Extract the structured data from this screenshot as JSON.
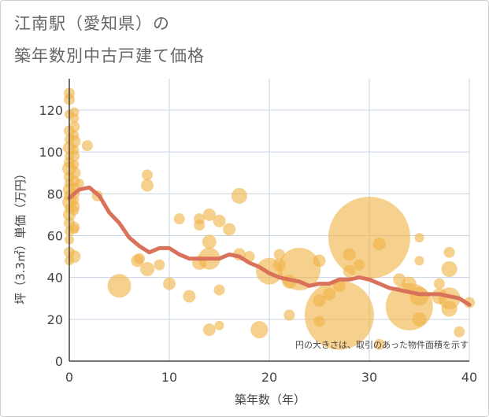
{
  "title_line1": "江南駅（愛知県）の",
  "title_line2": "築年数別中古戸建て価格",
  "chart_data": {
    "type": "scatter",
    "title": "江南駅（愛知県）の築年数別中古戸建て価格",
    "xlabel": "築年数（年）",
    "ylabel": "坪（3.3㎡）単価（万円）",
    "xlim": [
      0,
      40
    ],
    "ylim": [
      0,
      135
    ],
    "xticks": [
      0,
      10,
      20,
      30,
      40
    ],
    "yticks": [
      0,
      20,
      40,
      60,
      80,
      100,
      120
    ],
    "grid": true,
    "note": "円の大きさは、取引のあった物件面積を示す",
    "colors": {
      "bubble": "#f0b347",
      "trend": "#d9725a",
      "grid": "#c8d3e0",
      "axis": "#444444"
    },
    "points": [
      {
        "x": 0,
        "y": 128,
        "s": 7
      },
      {
        "x": 0,
        "y": 125,
        "s": 7
      },
      {
        "x": 0,
        "y": 118,
        "s": 6
      },
      {
        "x": 0,
        "y": 110,
        "s": 7
      },
      {
        "x": 0,
        "y": 106,
        "s": 6
      },
      {
        "x": 0,
        "y": 102,
        "s": 8
      },
      {
        "x": 0,
        "y": 98,
        "s": 6
      },
      {
        "x": 0,
        "y": 95,
        "s": 7
      },
      {
        "x": 0,
        "y": 92,
        "s": 9
      },
      {
        "x": 0,
        "y": 88,
        "s": 7
      },
      {
        "x": 0,
        "y": 85,
        "s": 6
      },
      {
        "x": 0,
        "y": 82,
        "s": 8
      },
      {
        "x": 0,
        "y": 79,
        "s": 7
      },
      {
        "x": 0,
        "y": 76,
        "s": 9
      },
      {
        "x": 0,
        "y": 73,
        "s": 6
      },
      {
        "x": 0,
        "y": 70,
        "s": 8
      },
      {
        "x": 0,
        "y": 66,
        "s": 7
      },
      {
        "x": 0,
        "y": 62,
        "s": 6
      },
      {
        "x": 0,
        "y": 58,
        "s": 6
      },
      {
        "x": 0,
        "y": 52,
        "s": 7
      },
      {
        "x": 0,
        "y": 48,
        "s": 6
      },
      {
        "x": 0.5,
        "y": 119,
        "s": 6
      },
      {
        "x": 0.5,
        "y": 116,
        "s": 6
      },
      {
        "x": 0.5,
        "y": 112,
        "s": 7
      },
      {
        "x": 0.5,
        "y": 108,
        "s": 6
      },
      {
        "x": 0.5,
        "y": 105,
        "s": 8
      },
      {
        "x": 0.5,
        "y": 101,
        "s": 6
      },
      {
        "x": 0.5,
        "y": 98,
        "s": 7
      },
      {
        "x": 0.5,
        "y": 94,
        "s": 6
      },
      {
        "x": 0.5,
        "y": 90,
        "s": 8
      },
      {
        "x": 0.5,
        "y": 86,
        "s": 7
      },
      {
        "x": 0.5,
        "y": 83,
        "s": 6
      },
      {
        "x": 0.5,
        "y": 80,
        "s": 7
      },
      {
        "x": 0.5,
        "y": 77,
        "s": 6
      },
      {
        "x": 0.5,
        "y": 74,
        "s": 7
      },
      {
        "x": 0.5,
        "y": 72,
        "s": 6
      },
      {
        "x": 0.5,
        "y": 64,
        "s": 7
      },
      {
        "x": 0.5,
        "y": 63,
        "s": 6
      },
      {
        "x": 0.5,
        "y": 50,
        "s": 8
      },
      {
        "x": 1,
        "y": 85,
        "s": 6
      },
      {
        "x": 1.8,
        "y": 103,
        "s": 7
      },
      {
        "x": 2.8,
        "y": 79,
        "s": 7
      },
      {
        "x": 5,
        "y": 36,
        "s": 15
      },
      {
        "x": 6.8,
        "y": 48,
        "s": 8
      },
      {
        "x": 7,
        "y": 49,
        "s": 7
      },
      {
        "x": 7.8,
        "y": 44,
        "s": 9
      },
      {
        "x": 7.8,
        "y": 84,
        "s": 8
      },
      {
        "x": 7.8,
        "y": 89,
        "s": 7
      },
      {
        "x": 9,
        "y": 46,
        "s": 7
      },
      {
        "x": 10,
        "y": 37,
        "s": 8
      },
      {
        "x": 11,
        "y": 68,
        "s": 7
      },
      {
        "x": 12,
        "y": 31,
        "s": 8
      },
      {
        "x": 13,
        "y": 68,
        "s": 7
      },
      {
        "x": 13,
        "y": 65,
        "s": 7
      },
      {
        "x": 13,
        "y": 47,
        "s": 9
      },
      {
        "x": 14,
        "y": 70,
        "s": 8
      },
      {
        "x": 14,
        "y": 57,
        "s": 9
      },
      {
        "x": 14,
        "y": 49,
        "s": 14
      },
      {
        "x": 14,
        "y": 15,
        "s": 8
      },
      {
        "x": 15,
        "y": 67,
        "s": 8
      },
      {
        "x": 15,
        "y": 34,
        "s": 7
      },
      {
        "x": 15,
        "y": 17,
        "s": 6
      },
      {
        "x": 16,
        "y": 63,
        "s": 8
      },
      {
        "x": 17,
        "y": 79,
        "s": 10
      },
      {
        "x": 17,
        "y": 51,
        "s": 8
      },
      {
        "x": 18,
        "y": 50,
        "s": 7
      },
      {
        "x": 19,
        "y": 15,
        "s": 11
      },
      {
        "x": 20,
        "y": 43,
        "s": 17
      },
      {
        "x": 21,
        "y": 51,
        "s": 7
      },
      {
        "x": 21,
        "y": 46,
        "s": 8
      },
      {
        "x": 22,
        "y": 22,
        "s": 7
      },
      {
        "x": 22,
        "y": 38,
        "s": 9
      },
      {
        "x": 23,
        "y": 44,
        "s": 27
      },
      {
        "x": 25,
        "y": 48,
        "s": 8
      },
      {
        "x": 25,
        "y": 29,
        "s": 8
      },
      {
        "x": 25,
        "y": 19,
        "s": 7
      },
      {
        "x": 26,
        "y": 32,
        "s": 8
      },
      {
        "x": 27,
        "y": 22,
        "s": 44
      },
      {
        "x": 27,
        "y": 36,
        "s": 8
      },
      {
        "x": 28,
        "y": 51,
        "s": 8
      },
      {
        "x": 28,
        "y": 43,
        "s": 8
      },
      {
        "x": 29,
        "y": 46,
        "s": 7
      },
      {
        "x": 30,
        "y": 59,
        "s": 52
      },
      {
        "x": 31,
        "y": 56,
        "s": 8
      },
      {
        "x": 31,
        "y": 8,
        "s": 7
      },
      {
        "x": 33,
        "y": 39,
        "s": 8
      },
      {
        "x": 34,
        "y": 37,
        "s": 9
      },
      {
        "x": 34,
        "y": 26,
        "s": 30
      },
      {
        "x": 35,
        "y": 59,
        "s": 6
      },
      {
        "x": 35,
        "y": 48,
        "s": 6
      },
      {
        "x": 35,
        "y": 31,
        "s": 12
      },
      {
        "x": 35,
        "y": 20,
        "s": 9
      },
      {
        "x": 37,
        "y": 37,
        "s": 7
      },
      {
        "x": 37,
        "y": 31,
        "s": 10
      },
      {
        "x": 38,
        "y": 30,
        "s": 14
      },
      {
        "x": 38,
        "y": 25,
        "s": 10
      },
      {
        "x": 38,
        "y": 44,
        "s": 10
      },
      {
        "x": 38,
        "y": 52,
        "s": 7
      },
      {
        "x": 39,
        "y": 14,
        "s": 7
      },
      {
        "x": 40,
        "y": 28,
        "s": 7
      }
    ],
    "trend": {
      "x": [
        0,
        1,
        2,
        3,
        4,
        5,
        6,
        7,
        8,
        9,
        10,
        11,
        12,
        13,
        14,
        15,
        16,
        17,
        18,
        19,
        20,
        21,
        22,
        23,
        24,
        25,
        26,
        27,
        28,
        29,
        30,
        31,
        32,
        33,
        34,
        35,
        36,
        37,
        38,
        39,
        40
      ],
      "y": [
        78,
        82,
        83,
        79,
        71,
        66,
        59,
        55,
        52,
        54,
        54,
        51,
        49,
        49,
        49,
        49,
        51,
        50,
        47,
        45,
        42,
        40,
        39,
        38,
        36,
        37,
        37,
        39,
        39,
        40,
        39,
        37,
        35,
        34,
        33,
        32,
        32,
        32,
        31,
        30,
        27
      ]
    }
  }
}
